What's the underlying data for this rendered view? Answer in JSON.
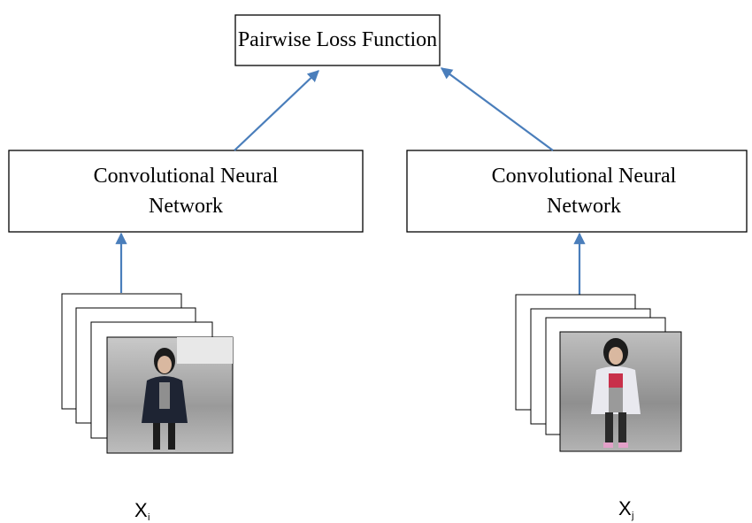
{
  "nodes": [
    {
      "label": "Pairwise Loss Function"
    },
    {
      "lines": [
        "Convolutional Neural",
        "Network"
      ]
    },
    {
      "lines": [
        "Convolutional Neural",
        "Network"
      ]
    }
  ],
  "inputs": [
    {
      "symbol": "X",
      "subscript": "i"
    },
    {
      "symbol": "X",
      "subscript": "j"
    }
  ]
}
